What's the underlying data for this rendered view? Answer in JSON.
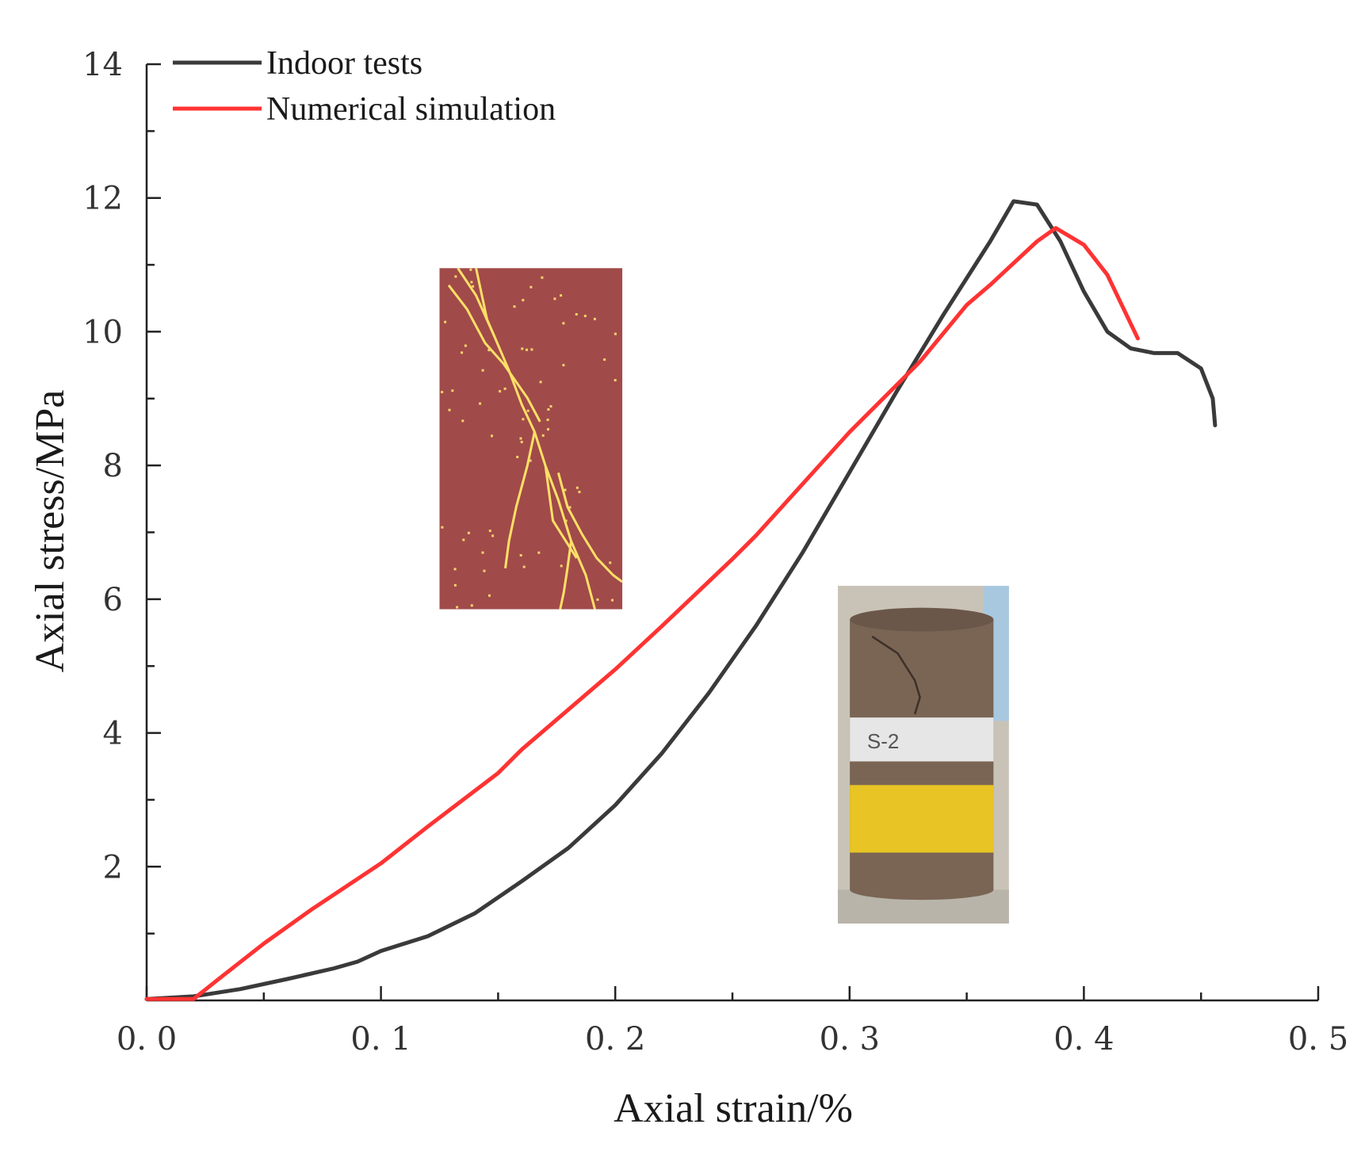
{
  "chart_data": {
    "type": "line",
    "xlabel": "Axial strain/%",
    "ylabel": "Axial stress/MPa",
    "xlim": [
      0,
      0.5
    ],
    "ylim": [
      0,
      14
    ],
    "x_ticks": [
      "0.0",
      "0.1",
      "0.2",
      "0.3",
      "0.4",
      "0.5"
    ],
    "y_ticks": [
      "2",
      "4",
      "6",
      "8",
      "10",
      "12",
      "14"
    ],
    "grid": false,
    "legend_position": "top-left",
    "series": [
      {
        "name": "Indoor tests",
        "color": "#3a3a3a",
        "points": [
          [
            0,
            0.02
          ],
          [
            0.02,
            0.06
          ],
          [
            0.04,
            0.17
          ],
          [
            0.06,
            0.32
          ],
          [
            0.08,
            0.48
          ],
          [
            0.09,
            0.58
          ],
          [
            0.1,
            0.74
          ],
          [
            0.12,
            0.96
          ],
          [
            0.14,
            1.3
          ],
          [
            0.16,
            1.78
          ],
          [
            0.18,
            2.28
          ],
          [
            0.2,
            2.92
          ],
          [
            0.22,
            3.7
          ],
          [
            0.24,
            4.6
          ],
          [
            0.26,
            5.6
          ],
          [
            0.28,
            6.7
          ],
          [
            0.3,
            7.9
          ],
          [
            0.32,
            9.1
          ],
          [
            0.34,
            10.25
          ],
          [
            0.36,
            11.35
          ],
          [
            0.37,
            11.95
          ],
          [
            0.38,
            11.9
          ],
          [
            0.39,
            11.35
          ],
          [
            0.4,
            10.6
          ],
          [
            0.41,
            10.0
          ],
          [
            0.42,
            9.75
          ],
          [
            0.43,
            9.68
          ],
          [
            0.44,
            9.68
          ],
          [
            0.45,
            9.45
          ],
          [
            0.455,
            9.0
          ],
          [
            0.456,
            8.6
          ]
        ]
      },
      {
        "name": "Numerical simulation",
        "color": "#ff3333",
        "points": [
          [
            0,
            0.02
          ],
          [
            0.02,
            0.02
          ],
          [
            0.03,
            0.3
          ],
          [
            0.05,
            0.85
          ],
          [
            0.07,
            1.35
          ],
          [
            0.1,
            2.05
          ],
          [
            0.12,
            2.6
          ],
          [
            0.15,
            3.4
          ],
          [
            0.16,
            3.75
          ],
          [
            0.2,
            4.95
          ],
          [
            0.22,
            5.6
          ],
          [
            0.25,
            6.6
          ],
          [
            0.26,
            6.95
          ],
          [
            0.3,
            8.5
          ],
          [
            0.33,
            9.55
          ],
          [
            0.35,
            10.4
          ],
          [
            0.36,
            10.7
          ],
          [
            0.38,
            11.35
          ],
          [
            0.388,
            11.55
          ],
          [
            0.4,
            11.3
          ],
          [
            0.41,
            10.85
          ],
          [
            0.423,
            9.9
          ]
        ]
      }
    ],
    "insets": [
      {
        "name": "numerical-crack-pattern",
        "x_range": [
          0.125,
          0.203
        ],
        "y_range": [
          5.85,
          10.95
        ]
      },
      {
        "name": "specimen-photo",
        "x_range": [
          0.295,
          0.368
        ],
        "y_range": [
          1.15,
          6.2
        ],
        "label": "S-2"
      }
    ]
  }
}
